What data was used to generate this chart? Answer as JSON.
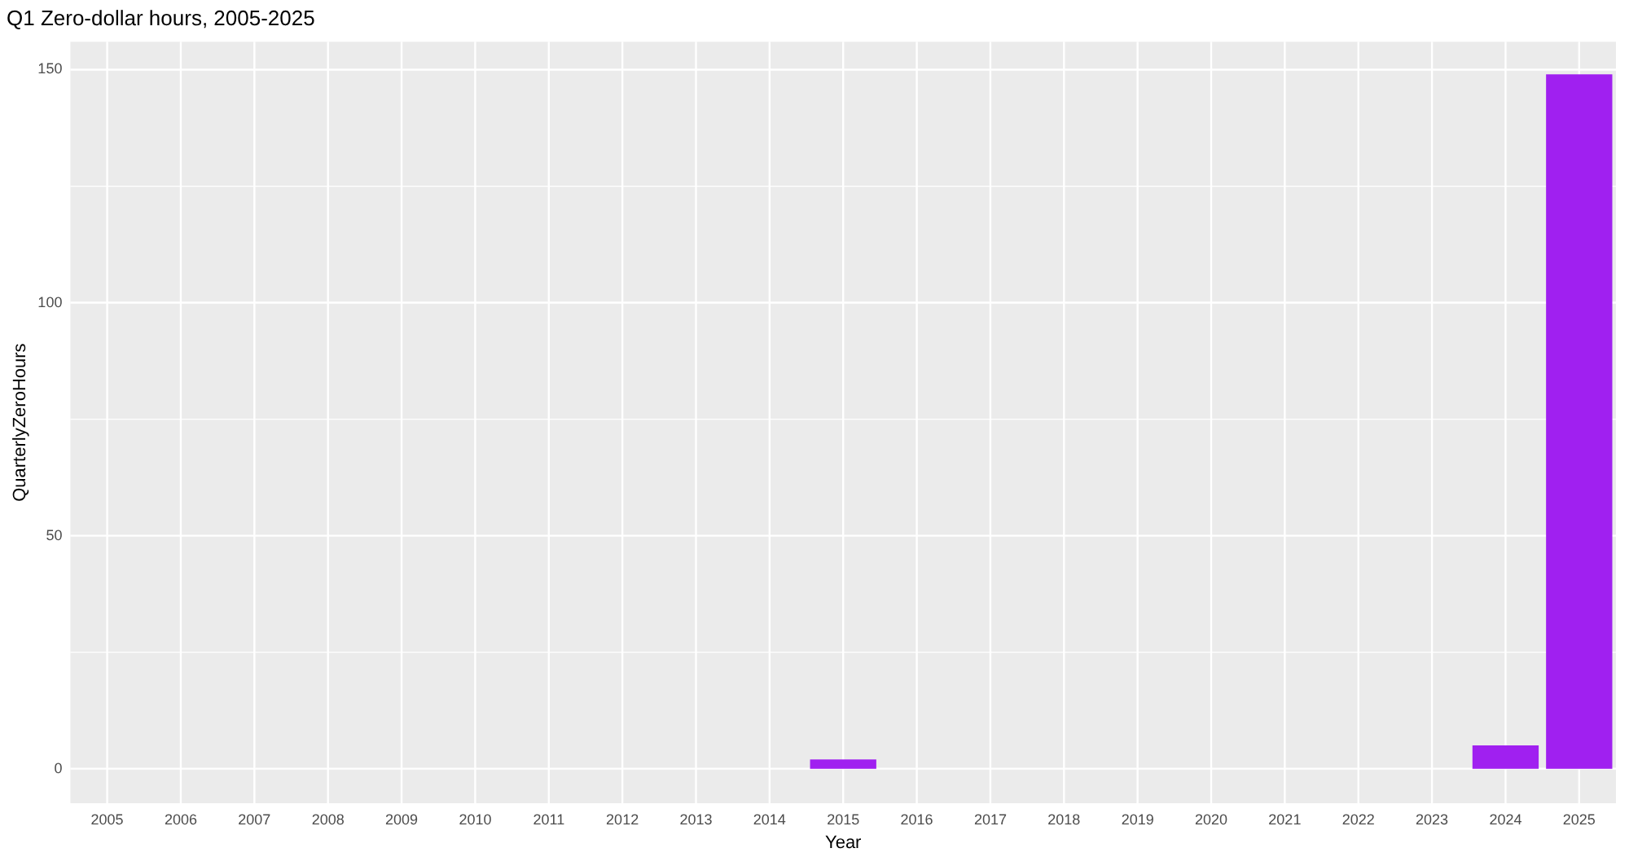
{
  "chart_data": {
    "type": "bar",
    "title": "Q1 Zero-dollar hours, 2005-2025",
    "xlabel": "Year",
    "ylabel": "QuarterlyZeroHours",
    "categories": [
      "2005",
      "2006",
      "2007",
      "2008",
      "2009",
      "2010",
      "2011",
      "2012",
      "2013",
      "2014",
      "2015",
      "2016",
      "2017",
      "2018",
      "2019",
      "2020",
      "2021",
      "2022",
      "2023",
      "2024",
      "2025"
    ],
    "values": [
      0,
      0,
      0,
      0,
      0,
      0,
      0,
      0,
      0,
      0,
      2,
      0,
      0,
      0,
      0,
      0,
      0,
      0,
      0,
      5,
      149
    ],
    "color": "#a020f0",
    "ylim": [
      -7.4,
      156
    ],
    "yticks": [
      0,
      50,
      100,
      150
    ],
    "grid": true,
    "legend": false
  }
}
